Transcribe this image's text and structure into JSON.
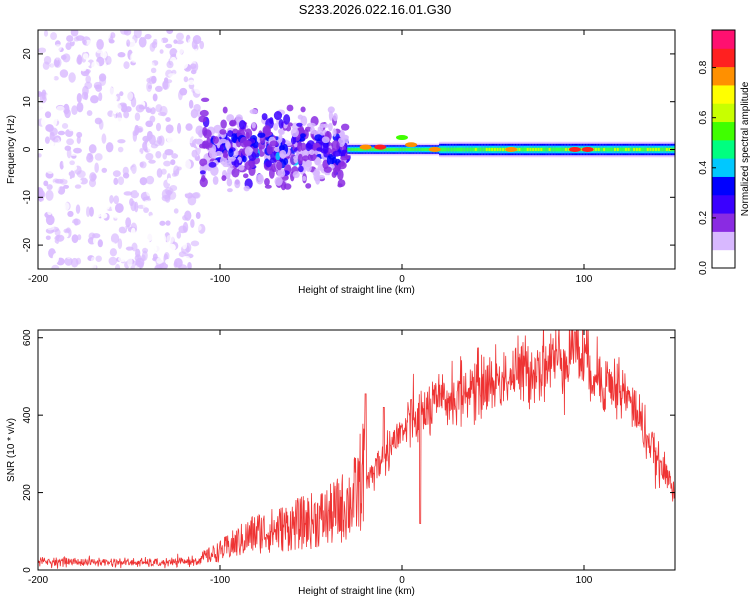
{
  "title": "S233.2026.022.16.01.G30",
  "chart_data": [
    {
      "type": "heatmap",
      "name": "spectrogram",
      "xlabel": "Height of straight line (km)",
      "ylabel": "Frequency (Hz)",
      "xlim": [
        -200,
        150
      ],
      "ylim": [
        -25,
        25
      ],
      "xticks": [
        -200,
        -100,
        0,
        100
      ],
      "yticks": [
        -20,
        -10,
        0,
        10,
        20
      ],
      "colorbar": {
        "label": "Normalized spectral amplitude",
        "range": [
          0,
          0.95
        ],
        "ticks": [
          0.0,
          0.2,
          0.4,
          0.6,
          0.8
        ],
        "tick_labels": [
          "0.0",
          "0.2",
          "0.4",
          "0.6",
          "0.8"
        ],
        "colors": [
          "#ffffff",
          "#d8b8ff",
          "#8a2be2",
          "#3a00ff",
          "#0000ff",
          "#00c8ff",
          "#00ff80",
          "#40ff00",
          "#c8ff00",
          "#ffff00",
          "#ff9000",
          "#ff2020",
          "#ff1070"
        ]
      },
      "description_regions": [
        {
          "x_range": [
            -200,
            -110
          ],
          "freq_range": [
            -25,
            25
          ],
          "level": "low",
          "amplitude": 0.1
        },
        {
          "x_range": [
            -110,
            -30
          ],
          "freq_range": [
            -10,
            10
          ],
          "level": "medium",
          "amplitude": 0.2
        },
        {
          "x_range": [
            -30,
            150
          ],
          "freq_range": [
            -1.5,
            1.5
          ],
          "level": "high",
          "amplitude": 0.7
        }
      ],
      "ridge_peaks": [
        {
          "x": -20,
          "freq": 0.5,
          "amplitude": 0.85
        },
        {
          "x": -12,
          "freq": 0.5,
          "amplitude": 0.9
        },
        {
          "x": 0,
          "freq": 2.5,
          "amplitude": 0.6
        },
        {
          "x": 5,
          "freq": 1.0,
          "amplitude": 0.85
        },
        {
          "x": 18,
          "freq": 0.0,
          "amplitude": 0.85
        },
        {
          "x": 60,
          "freq": 0.0,
          "amplitude": 0.8
        },
        {
          "x": 95,
          "freq": 0.0,
          "amplitude": 0.9
        },
        {
          "x": 102,
          "freq": 0.0,
          "amplitude": 0.95
        }
      ]
    },
    {
      "type": "line",
      "name": "snr",
      "xlabel": "Height of straight line (km)",
      "ylabel": "SNR (10 * v/v)",
      "xlim": [
        -200,
        150
      ],
      "ylim": [
        0,
        620
      ],
      "xticks": [
        -200,
        -100,
        0,
        100
      ],
      "yticks": [
        0,
        200,
        400,
        600
      ],
      "color": "#ee3333",
      "envelope": {
        "x": [
          -200,
          -160,
          -130,
          -110,
          -100,
          -90,
          -80,
          -70,
          -60,
          -50,
          -40,
          -30,
          -25,
          -20,
          -15,
          -10,
          -5,
          0,
          10,
          20,
          40,
          60,
          80,
          90,
          95,
          100,
          110,
          120,
          130,
          140,
          150
        ],
        "y": [
          22,
          20,
          18,
          25,
          40,
          60,
          80,
          85,
          95,
          105,
          115,
          140,
          160,
          230,
          260,
          300,
          330,
          355,
          400,
          430,
          470,
          500,
          535,
          555,
          575,
          545,
          490,
          470,
          400,
          280,
          210
        ]
      },
      "spikes": [
        {
          "x": -20,
          "y": 455
        },
        {
          "x": -10,
          "y": 420
        },
        {
          "x": 5,
          "y": 440
        },
        {
          "x": 10,
          "y": 120
        },
        {
          "x": 95,
          "y": 615
        }
      ]
    }
  ]
}
